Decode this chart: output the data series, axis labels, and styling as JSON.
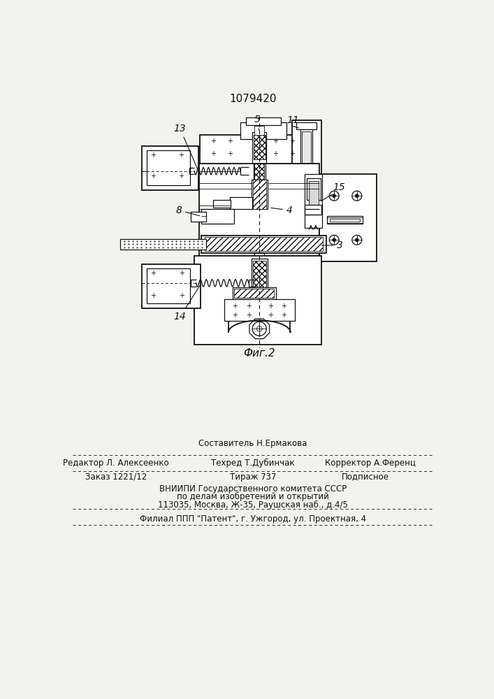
{
  "title": "1079420",
  "fig_label": "Фиг.2",
  "bg": "#f2f2ee",
  "lc": "#111111",
  "footer": {
    "l1_top": "Составитель Н.Ермакова",
    "l1_left": "Редактор Л. Алексеенко",
    "l1_mid": "Техред Т.Дубинчак",
    "l1_right": "Корректор А.Ференц",
    "l2_left": "Заказ 1221/12",
    "l2_mid": "Тираж 737",
    "l2_right": "Подписное",
    "l3": "ВНИИПИ Государственного комитета СССР",
    "l4": "по делам изобретений и открытий",
    "l5": "113035, Москва, Ж-35, Раушская наб., д.4/5",
    "l6": "Филиал ППП \"Патент\", г. Ужгород, ул. Проектная, 4"
  }
}
